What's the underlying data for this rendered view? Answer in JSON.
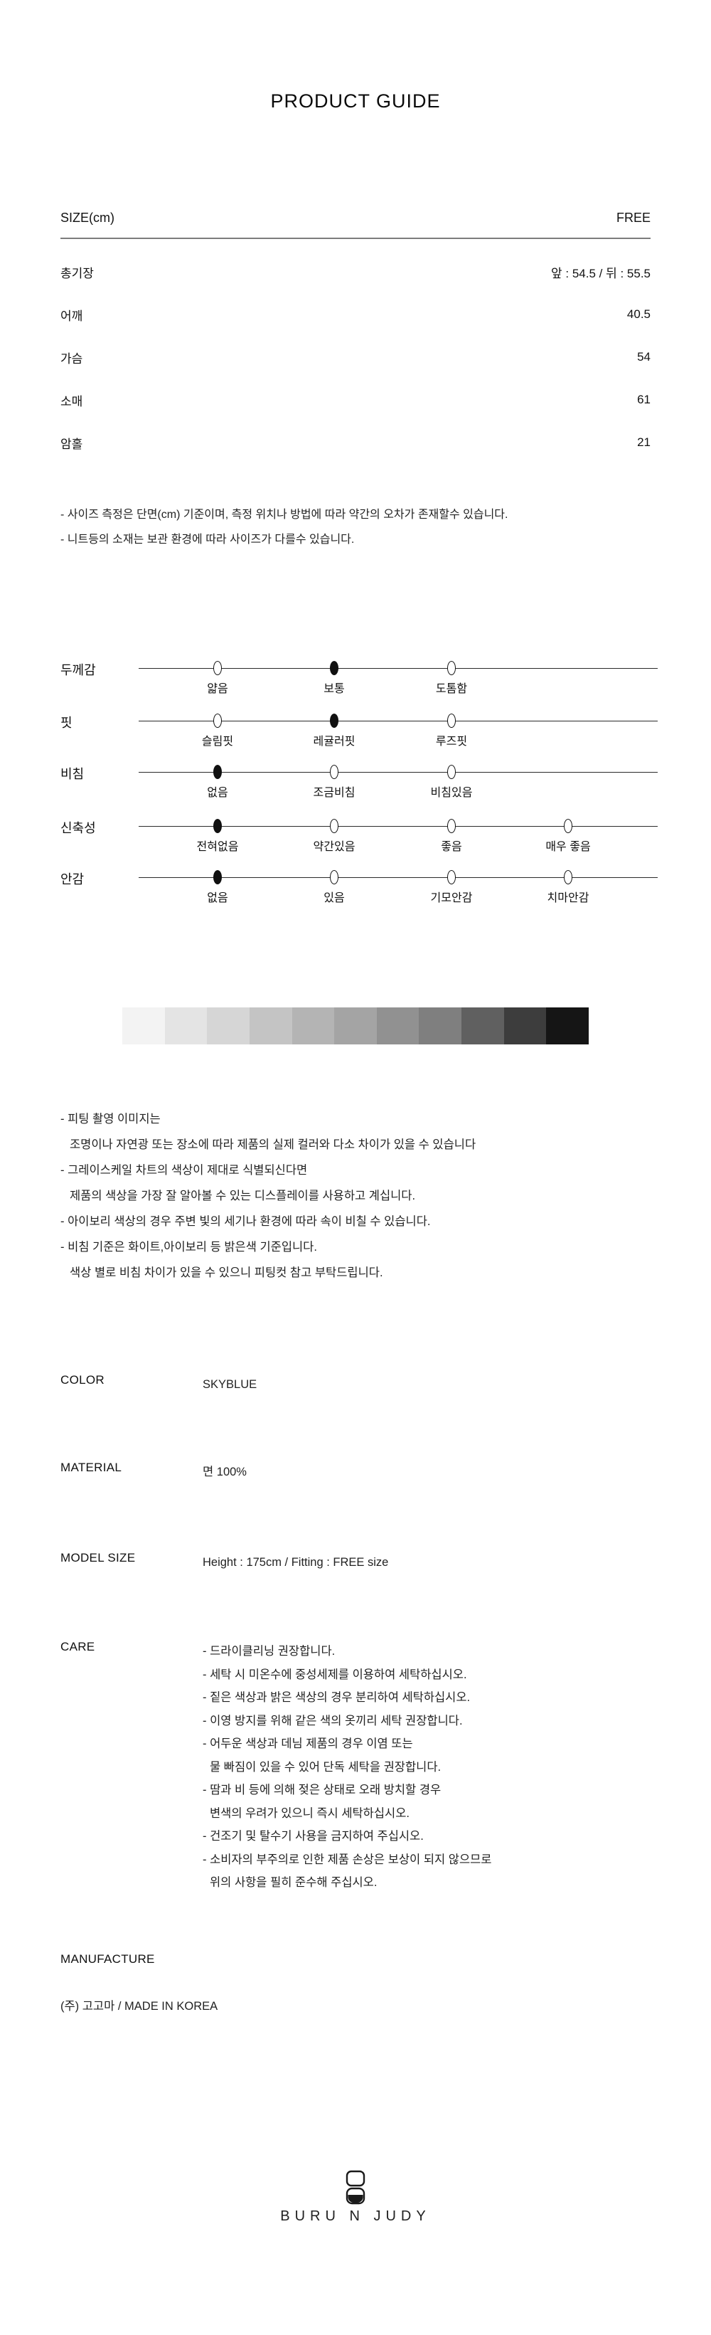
{
  "page": {
    "title": "PRODUCT GUIDE"
  },
  "size_table": {
    "header": {
      "label": "SIZE(cm)",
      "value": "FREE"
    },
    "rows": [
      {
        "label": "총기장",
        "value": "앞 : 54.5 / 뒤 : 55.5"
      },
      {
        "label": "어깨",
        "value": "40.5"
      },
      {
        "label": "가슴",
        "value": "54"
      },
      {
        "label": "소매",
        "value": "61"
      },
      {
        "label": "암홀",
        "value": "21"
      }
    ],
    "notes": [
      "- 사이즈 측정은 단면(cm) 기준이며, 측정 위치나 방법에 따라 약간의 오차가 존재할수 있습니다.",
      "- 니트등의 소재는 보관 환경에 따라 사이즈가 다를수 있습니다."
    ]
  },
  "fit_scales": {
    "rows": [
      {
        "label": "두께감",
        "options": [
          {
            "label": "얇음",
            "selected": false
          },
          {
            "label": "보통",
            "selected": true
          },
          {
            "label": "도톰함",
            "selected": false
          }
        ]
      },
      {
        "label": "핏",
        "options": [
          {
            "label": "슬림핏",
            "selected": false
          },
          {
            "label": "레귤러핏",
            "selected": true
          },
          {
            "label": "루즈핏",
            "selected": false
          }
        ]
      },
      {
        "label": "비침",
        "options": [
          {
            "label": "없음",
            "selected": true
          },
          {
            "label": "조금비침",
            "selected": false
          },
          {
            "label": "비침있음",
            "selected": false
          }
        ]
      },
      {
        "label": "신축성",
        "options": [
          {
            "label": "전혀없음",
            "selected": true
          },
          {
            "label": "약간있음",
            "selected": false
          },
          {
            "label": "좋음",
            "selected": false
          },
          {
            "label": "매우 좋음",
            "selected": false
          }
        ]
      },
      {
        "label": "안감",
        "options": [
          {
            "label": "없음",
            "selected": true
          },
          {
            "label": "있음",
            "selected": false
          },
          {
            "label": "기모안감",
            "selected": false
          },
          {
            "label": "치마안감",
            "selected": false
          }
        ]
      }
    ]
  },
  "grayscale_chart": {
    "colors": [
      "#f3f3f3",
      "#e4e4e4",
      "#d6d6d6",
      "#c4c4c4",
      "#b4b4b4",
      "#a4a4a4",
      "#919191",
      "#7f7f7f",
      "#606060",
      "#3d3d3d",
      "#151515"
    ]
  },
  "display_notes": [
    {
      "text": "- 피팅 촬영 이미지는",
      "indent": false
    },
    {
      "text": "조명이나 자연광 또는 장소에 따라 제품의 실제 컬러와 다소 차이가 있을 수 있습니다",
      "indent": true
    },
    {
      "text": "- 그레이스케일 차트의 색상이 제대로 식별되신다면",
      "indent": false
    },
    {
      "text": "제품의 색상을 가장 잘 알아볼 수 있는 디스플레이를 사용하고 계십니다.",
      "indent": true
    },
    {
      "text": "- 아이보리 색상의 경우 주변 빛의 세기나 환경에 따라 속이 비칠 수 있습니다.",
      "indent": false
    },
    {
      "text": "- 비침 기준은 화이트,아이보리 등 밝은색 기준입니다.",
      "indent": false
    },
    {
      "text": "색상 별로 비침 차이가 있을 수 있으니 피팅컷 참고 부탁드립니다.",
      "indent": true
    }
  ],
  "info_sections": [
    {
      "label": "COLOR",
      "lines": [
        {
          "text": "SKYBLUE",
          "indent": false
        }
      ]
    },
    {
      "label": "MATERIAL",
      "lines": [
        {
          "text": "면 100%",
          "indent": false
        }
      ]
    },
    {
      "label": "MODEL SIZE",
      "lines": [
        {
          "text": "Height : 175cm / Fitting : FREE size",
          "indent": false
        }
      ]
    },
    {
      "label": "CARE",
      "lines": [
        {
          "text": "- 드라이클리닝 권장합니다.",
          "indent": false
        },
        {
          "text": "- 세탁 시 미온수에 중성세제를 이용하여 세탁하십시오.",
          "indent": false
        },
        {
          "text": "- 짙은 색상과 밝은 색상의 경우 분리하여 세탁하십시오.",
          "indent": false
        },
        {
          "text": "- 이영 방지를 위해 같은 색의 옷끼리 세탁 권장합니다.",
          "indent": false
        },
        {
          "text": "- 어두운 색상과 데님 제품의 경우 이염 또는",
          "indent": false
        },
        {
          "text": "물 빠짐이 있을 수 있어 단독 세탁을 권장합니다.",
          "indent": true
        },
        {
          "text": "- 땀과 비 등에 의해 젖은 상태로 오래 방치할 경우",
          "indent": false
        },
        {
          "text": "변색의 우려가 있으니 즉시 세탁하십시오.",
          "indent": true
        },
        {
          "text": "- 건조기 및 탈수기 사용을 금지하여 주십시오.",
          "indent": false
        },
        {
          "text": "- 소비자의 부주의로 인한 제품 손상은 보상이 되지 않으므로",
          "indent": false
        },
        {
          "text": "위의 사항을 필히 준수해 주십시오.",
          "indent": true
        }
      ]
    }
  ],
  "manufacture": {
    "label": "MANUFACTURE",
    "value": "(주) 고고마 / MADE IN KOREA"
  },
  "footer": {
    "brand": "BURU N JUDY",
    "logo_icon": "hourglass-icon"
  }
}
